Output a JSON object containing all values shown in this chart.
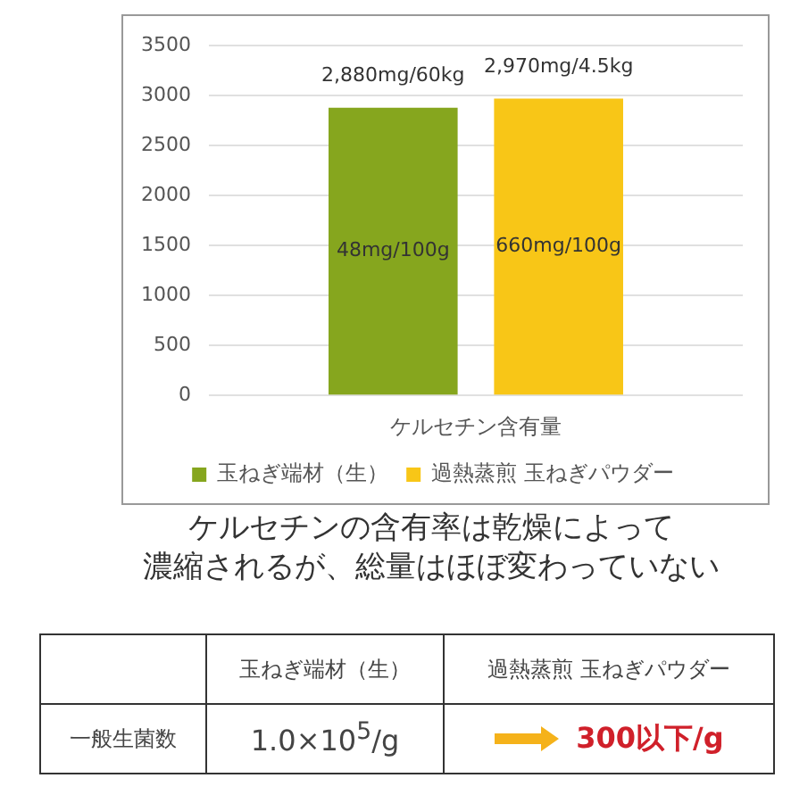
{
  "chart_data": {
    "type": "bar",
    "categories": [
      "ケルセチン含有量"
    ],
    "series": [
      {
        "name": "玉ねぎ端材（生）",
        "color": "#86a61e",
        "values": [
          2880
        ],
        "value_labels": [
          "2,880mg/60kg"
        ]
      },
      {
        "name": "過熱蒸煎 玉ねぎパウダー",
        "color": "#f8c617",
        "values": [
          2970
        ],
        "value_labels": [
          "2,970mg/4.5kg"
        ]
      }
    ],
    "ylim": [
      0,
      3500
    ],
    "yticks": [
      0,
      500,
      1000,
      1500,
      2000,
      2500,
      3000,
      3500
    ],
    "grid": "y",
    "legend": "bottom",
    "annotations": [
      "48mg/100g",
      "660mg/100g",
      "ケルセチンの含有率は乾燥によって",
      "濃縮されるが、総量はほぼ変わっていない",
      "一般生菌数",
      "1.0×10$^{5}$/g",
      "300以下/g"
    ]
  }
}
